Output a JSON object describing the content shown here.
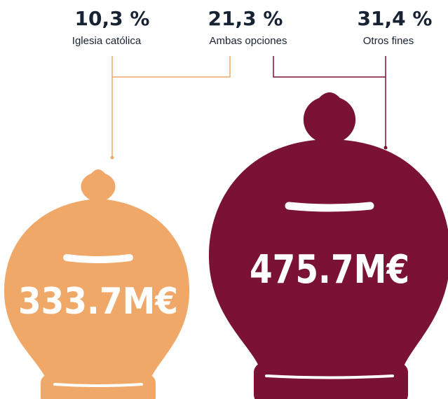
{
  "labels": [
    {
      "percent": "10,3 %",
      "name": "Iglesia católica"
    },
    {
      "percent": "21,3 %",
      "name": "Ambas opciones"
    },
    {
      "percent": "31,4 %",
      "name": "Otros fines"
    }
  ],
  "banks": [
    {
      "amount": "333.7M€"
    },
    {
      "amount": "475.7M€"
    }
  ]
}
